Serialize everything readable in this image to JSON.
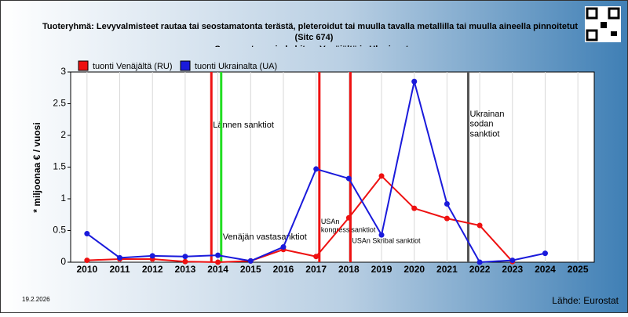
{
  "chart_data": {
    "type": "line",
    "title": "Tuoteryhmä: Levyvalmisteet rautaa tai seostamatonta terästä, pleteroidut tai muulla tavalla metallilla tai muulla aineella pinnoitetut",
    "subtitle": "(Sitc 674)",
    "subtitle2": "Suomen tuonnin kehitys, Venäjältä ja Ukrainasta",
    "ylabel": "* miljoonaa € / vuosi",
    "date": "19.2.2026",
    "source": "Lähde: Eurostat",
    "x": [
      2010,
      2011,
      2012,
      2013,
      2014,
      2015,
      2016,
      2017,
      2018,
      2019,
      2020,
      2021,
      2022,
      2023,
      2024
    ],
    "series": [
      {
        "name": "tuonti Venäjältä (RU)",
        "color": "#ee1111",
        "values": [
          0.03,
          0.05,
          0.05,
          0.01,
          0.0,
          0.02,
          0.2,
          0.09,
          0.7,
          1.36,
          0.85,
          0.69,
          0.58,
          0.01,
          null
        ]
      },
      {
        "name": "tuonti Ukrainalta (UA)",
        "color": "#1a1adb",
        "values": [
          0.45,
          0.07,
          0.1,
          0.09,
          0.11,
          0.02,
          0.24,
          1.47,
          1.32,
          0.43,
          2.85,
          0.92,
          0.0,
          0.03,
          0.14
        ]
      }
    ],
    "markers": [
      {
        "x": 2013.8,
        "color": "#ee1111",
        "label": "Lännen sanktiot"
      },
      {
        "x": 2014.1,
        "color": "#22dd22",
        "label": "Venäjän vastasanktiot"
      },
      {
        "x": 2017.1,
        "color": "#ee1111",
        "label": "USAn kongressisanktiot"
      },
      {
        "x": 2018.05,
        "color": "#ee1111",
        "label": "USAn Skribal sanktiot"
      },
      {
        "x": 2021.65,
        "color": "#555555",
        "label": "Ukrainan sodan sanktiot"
      }
    ],
    "xlim": [
      2009.5,
      2025.5
    ],
    "xticks": [
      2010,
      2011,
      2012,
      2013,
      2014,
      2015,
      2016,
      2017,
      2018,
      2019,
      2020,
      2021,
      2022,
      2023,
      2024,
      2025
    ],
    "ylim": [
      0,
      3
    ],
    "yticks": [
      0,
      0.5,
      1,
      1.5,
      2,
      2.5,
      3
    ],
    "grid": true
  }
}
